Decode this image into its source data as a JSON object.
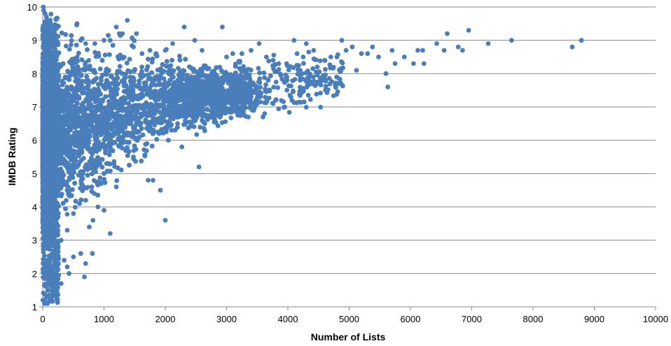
{
  "chart_data": {
    "type": "scatter",
    "title": "",
    "xlabel": "Number of Lists",
    "ylabel": "IMDB Rating",
    "xlim": [
      0,
      10000
    ],
    "ylim": [
      1,
      10
    ],
    "x_ticks": [
      0,
      1000,
      2000,
      3000,
      4000,
      5000,
      6000,
      7000,
      8000,
      9000,
      10000
    ],
    "y_ticks": [
      1,
      2,
      3,
      4,
      5,
      6,
      7,
      8,
      9,
      10
    ],
    "grid": "horizontal",
    "legend": "none",
    "point_color": "#4a7ebb",
    "series": [
      {
        "points": [
          [
            10,
            10.0
          ],
          [
            15,
            9.9
          ],
          [
            40,
            9.8
          ],
          [
            60,
            9.7
          ],
          [
            90,
            9.5
          ],
          [
            110,
            9.3
          ],
          [
            130,
            9.2
          ],
          [
            150,
            9.1
          ],
          [
            160,
            9.0
          ],
          [
            200,
            8.9
          ],
          [
            560,
            9.5
          ],
          [
            620,
            9.0
          ],
          [
            700,
            8.9
          ],
          [
            850,
            8.9
          ],
          [
            1000,
            9.0
          ],
          [
            1100,
            9.0
          ],
          [
            1200,
            9.4
          ],
          [
            1250,
            9.2
          ],
          [
            1300,
            9.2
          ],
          [
            1380,
            9.6
          ],
          [
            1530,
            9.2
          ],
          [
            1480,
            8.8
          ],
          [
            1620,
            8.6
          ],
          [
            1750,
            8.7
          ],
          [
            1850,
            8.6
          ],
          [
            2000,
            8.7
          ],
          [
            2120,
            8.9
          ],
          [
            2310,
            9.4
          ],
          [
            2480,
            9.0
          ],
          [
            2600,
            8.7
          ],
          [
            2930,
            9.4
          ],
          [
            3000,
            8.5
          ],
          [
            3100,
            8.6
          ],
          [
            3250,
            8.6
          ],
          [
            3400,
            8.7
          ],
          [
            3530,
            8.9
          ],
          [
            3650,
            8.5
          ],
          [
            3760,
            8.4
          ],
          [
            3850,
            8.3
          ],
          [
            3980,
            8.3
          ],
          [
            4100,
            9.0
          ],
          [
            4150,
            8.6
          ],
          [
            4250,
            8.5
          ],
          [
            4300,
            8.9
          ],
          [
            4420,
            8.7
          ],
          [
            4480,
            8.2
          ],
          [
            4600,
            8.4
          ],
          [
            4700,
            8.5
          ],
          [
            4800,
            8.5
          ],
          [
            4880,
            9.0
          ],
          [
            4950,
            8.7
          ],
          [
            5050,
            8.8
          ],
          [
            5120,
            8.1
          ],
          [
            5200,
            8.6
          ],
          [
            5300,
            8.6
          ],
          [
            5380,
            8.8
          ],
          [
            5480,
            8.5
          ],
          [
            5600,
            8.0
          ],
          [
            5630,
            7.6
          ],
          [
            5700,
            8.7
          ],
          [
            5750,
            8.3
          ],
          [
            5900,
            8.5
          ],
          [
            6050,
            8.3
          ],
          [
            6120,
            8.7
          ],
          [
            6200,
            8.7
          ],
          [
            6220,
            8.3
          ],
          [
            6430,
            8.9
          ],
          [
            6550,
            8.7
          ],
          [
            6600,
            9.2
          ],
          [
            6780,
            8.8
          ],
          [
            6850,
            8.7
          ],
          [
            6950,
            9.3
          ],
          [
            7270,
            8.9
          ],
          [
            7650,
            9.0
          ],
          [
            8640,
            8.8
          ],
          [
            8790,
            9.0
          ],
          [
            1100,
            3.2
          ],
          [
            2000,
            3.6
          ],
          [
            1920,
            4.5
          ],
          [
            2550,
            5.2
          ],
          [
            1720,
            4.8
          ],
          [
            1800,
            4.8
          ],
          [
            1480,
            5.5
          ],
          [
            1280,
            5.9
          ],
          [
            2270,
            5.8
          ],
          [
            2050,
            6.0
          ],
          [
            1000,
            3.9
          ],
          [
            760,
            3.4
          ],
          [
            810,
            2.6
          ],
          [
            700,
            2.3
          ],
          [
            680,
            1.9
          ],
          [
            430,
            2.0
          ],
          [
            300,
            1.7
          ],
          [
            220,
            2.0
          ],
          [
            150,
            1.6
          ],
          [
            90,
            1.5
          ],
          [
            60,
            1.3
          ],
          [
            30,
            1.1
          ],
          [
            20,
            1.2
          ],
          [
            500,
            2.5
          ],
          [
            350,
            2.4
          ],
          [
            400,
            2.2
          ],
          [
            620,
            2.6
          ],
          [
            820,
            3.6
          ],
          [
            900,
            4.0
          ],
          [
            1200,
            4.6
          ],
          [
            3620,
            6.8
          ],
          [
            3950,
            7.0
          ],
          [
            4050,
            7.3
          ],
          [
            3800,
            7.2
          ],
          [
            3300,
            7.4
          ],
          [
            3500,
            7.6
          ],
          [
            4200,
            7.8
          ],
          [
            2800,
            6.7
          ],
          [
            2950,
            6.9
          ],
          [
            2600,
            6.6
          ],
          [
            3100,
            7.5
          ],
          [
            3200,
            7.8
          ],
          [
            3400,
            7.3
          ],
          [
            2700,
            7.9
          ],
          [
            2500,
            7.2
          ],
          [
            2300,
            7.6
          ],
          [
            2200,
            6.5
          ],
          [
            2100,
            6.3
          ],
          [
            1900,
            6.2
          ],
          [
            1700,
            5.9
          ],
          [
            1600,
            6.7
          ],
          [
            1500,
            6.4
          ],
          [
            1400,
            7.1
          ],
          [
            1300,
            6.0
          ],
          [
            1200,
            6.8
          ],
          [
            1100,
            5.8
          ],
          [
            1000,
            5.0
          ],
          [
            900,
            5.4
          ],
          [
            800,
            4.6
          ],
          [
            700,
            4.2
          ],
          [
            600,
            4.1
          ],
          [
            500,
            3.8
          ],
          [
            400,
            3.3
          ],
          [
            300,
            3.0
          ],
          [
            250,
            2.8
          ],
          [
            200,
            2.6
          ],
          [
            180,
            3.2
          ],
          [
            120,
            2.2
          ],
          [
            100,
            2.9
          ],
          [
            80,
            1.9
          ]
        ]
      }
    ]
  }
}
